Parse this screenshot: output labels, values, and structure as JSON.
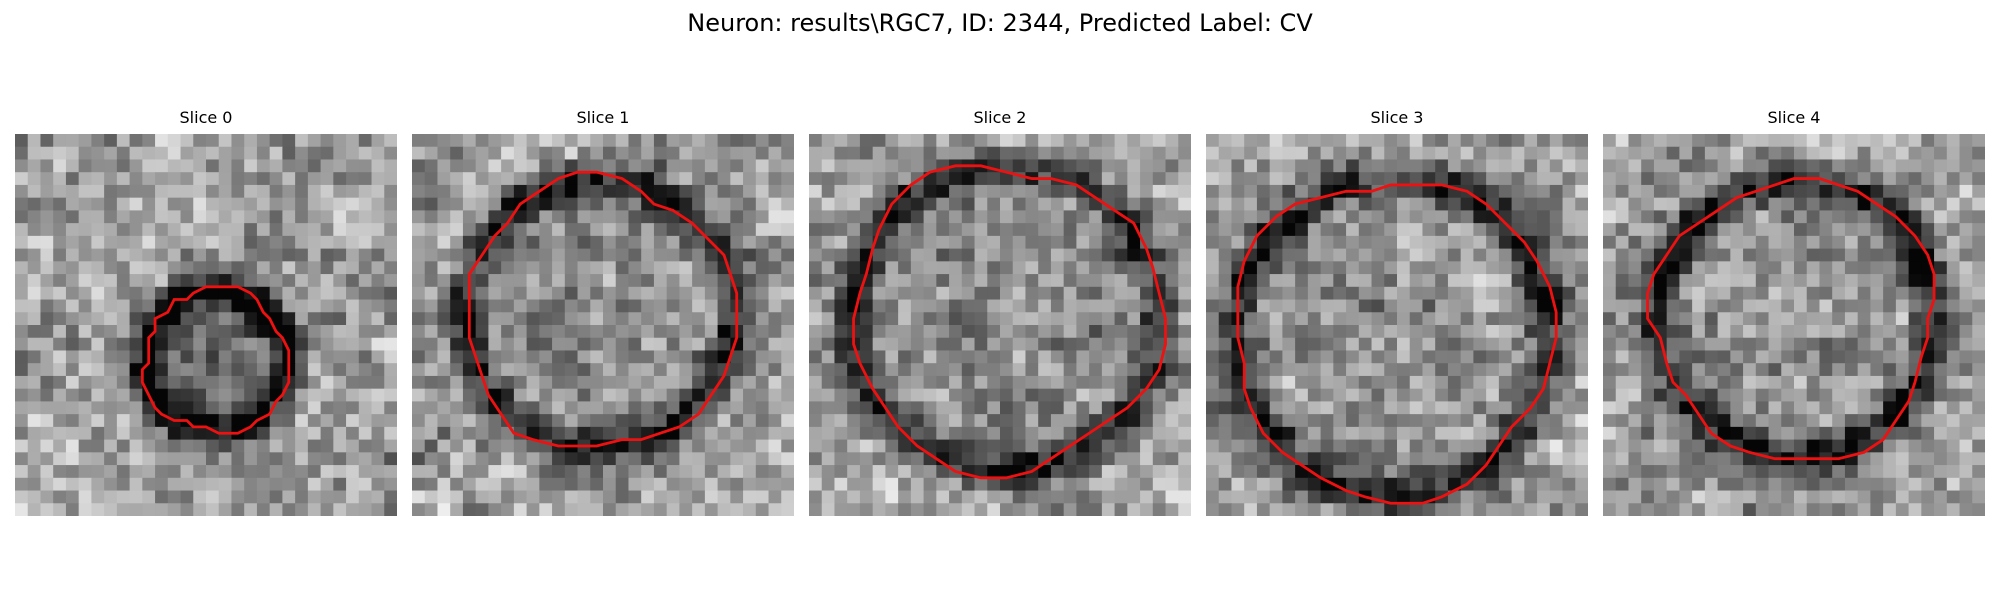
{
  "figure": {
    "title": "Neuron: results\\RGC7, ID: 2344, Predicted Label: CV"
  },
  "panels": [
    {
      "title": "Slice 0"
    },
    {
      "title": "Slice 1"
    },
    {
      "title": "Slice 2"
    },
    {
      "title": "Slice 3"
    },
    {
      "title": "Slice 4"
    }
  ],
  "colors": {
    "contour": "#ee1111",
    "colormap": "grayscale"
  }
}
